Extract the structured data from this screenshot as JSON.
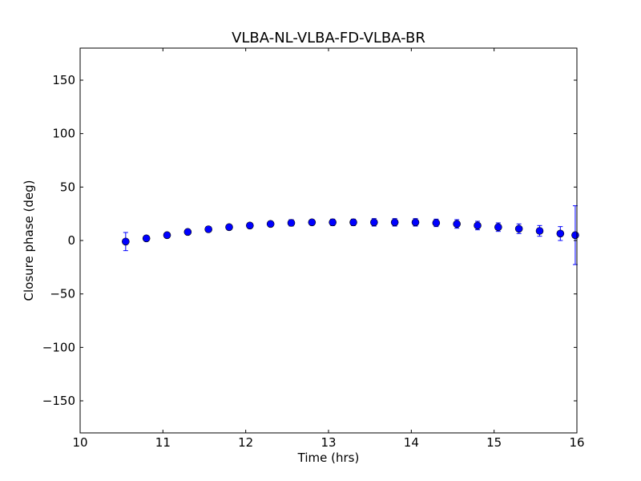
{
  "chart_data": {
    "type": "scatter",
    "title": "VLBA-NL-VLBA-FD-VLBA-BR",
    "xlabel": "Time (hrs)",
    "ylabel": "Closure phase (deg)",
    "xlim": [
      10,
      16
    ],
    "ylim": [
      -180,
      180
    ],
    "xticks": [
      10,
      11,
      12,
      13,
      14,
      15,
      16
    ],
    "xtick_labels": [
      "10",
      "11",
      "12",
      "13",
      "14",
      "15",
      "16"
    ],
    "yticks": [
      -150,
      -100,
      -50,
      0,
      50,
      100,
      150
    ],
    "ytick_labels": [
      "−150",
      "−100",
      "−50",
      "0",
      "50",
      "100",
      "150"
    ],
    "grid": false,
    "marker_color": "#0000ff",
    "errorbar_color": "#0000ff",
    "points": [
      {
        "x": 10.55,
        "y": -1.0,
        "err": 8.5
      },
      {
        "x": 10.8,
        "y": 2.0,
        "err": 2.5
      },
      {
        "x": 11.05,
        "y": 5.0,
        "err": 2.5
      },
      {
        "x": 11.3,
        "y": 8.0,
        "err": 2.5
      },
      {
        "x": 11.55,
        "y": 10.5,
        "err": 2.5
      },
      {
        "x": 11.8,
        "y": 12.5,
        "err": 2.5
      },
      {
        "x": 12.05,
        "y": 14.0,
        "err": 2.5
      },
      {
        "x": 12.3,
        "y": 15.5,
        "err": 2.5
      },
      {
        "x": 12.55,
        "y": 16.5,
        "err": 3.0
      },
      {
        "x": 12.8,
        "y": 17.0,
        "err": 2.5
      },
      {
        "x": 13.05,
        "y": 17.0,
        "err": 3.0
      },
      {
        "x": 13.3,
        "y": 17.0,
        "err": 3.0
      },
      {
        "x": 13.55,
        "y": 17.0,
        "err": 3.5
      },
      {
        "x": 13.8,
        "y": 17.0,
        "err": 3.5
      },
      {
        "x": 14.05,
        "y": 17.0,
        "err": 3.5
      },
      {
        "x": 14.3,
        "y": 16.5,
        "err": 3.5
      },
      {
        "x": 14.55,
        "y": 15.5,
        "err": 4.0
      },
      {
        "x": 14.8,
        "y": 14.0,
        "err": 4.0
      },
      {
        "x": 15.05,
        "y": 12.5,
        "err": 4.0
      },
      {
        "x": 15.3,
        "y": 11.0,
        "err": 4.5
      },
      {
        "x": 15.55,
        "y": 9.0,
        "err": 5.0
      },
      {
        "x": 15.8,
        "y": 6.5,
        "err": 6.5
      },
      {
        "x": 15.98,
        "y": 5.0,
        "err": 27.5
      }
    ]
  }
}
